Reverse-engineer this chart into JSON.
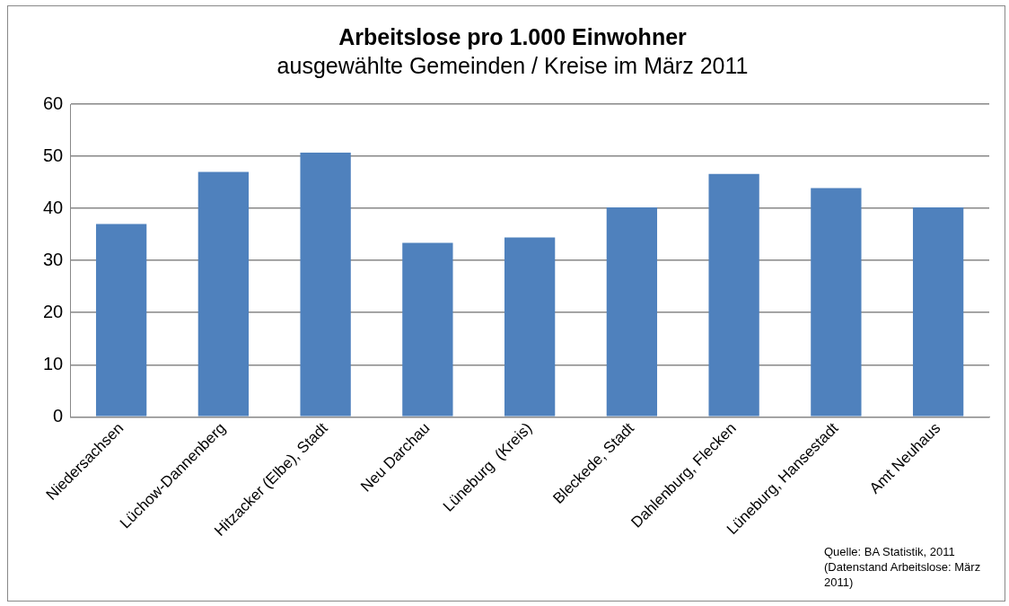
{
  "chart_data": {
    "type": "bar",
    "title": "Arbeitslose pro 1.000 Einwohner",
    "subtitle": "ausgewählte Gemeinden / Kreise im März 2011",
    "categories": [
      "Niedersachsen",
      "Lüchow-Dannenberg",
      "Hitzacker (Elbe), Stadt",
      "Neu Darchau",
      "Lüneburg  (Kreis)",
      "Bleckede, Stadt",
      "Dahlenburg, Flecken",
      "Lüneburg, Hansestadt",
      "Amt Neuhaus"
    ],
    "values": [
      37,
      47,
      50.7,
      33.4,
      34.4,
      40.2,
      46.6,
      43.9,
      40.2
    ],
    "color": "#4f81bd",
    "ylim": [
      0,
      60
    ],
    "yticks": [
      0,
      10,
      20,
      30,
      40,
      50,
      60
    ],
    "grid": "y",
    "legend": false,
    "annotations": [
      "Quelle: BA Statistik, 2011 (Datenstand Arbeitslose: März 2011)"
    ]
  }
}
